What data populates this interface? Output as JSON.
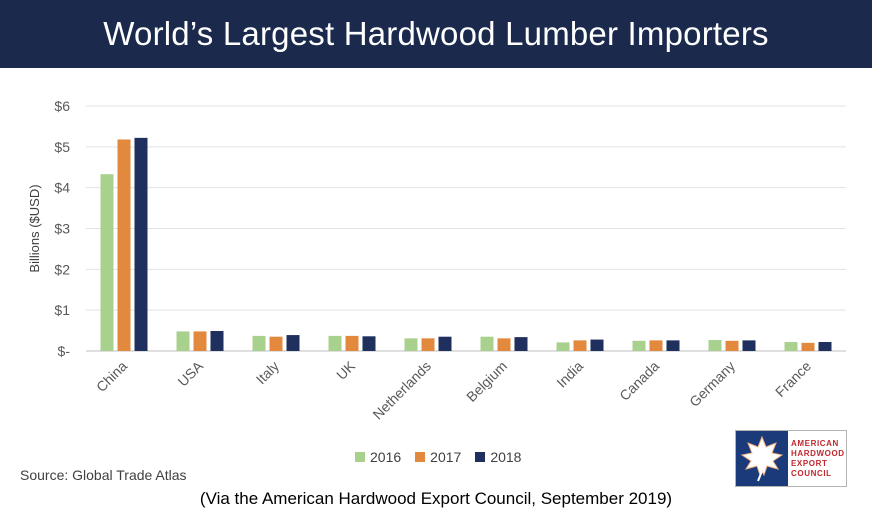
{
  "header": {
    "title": "World’s Largest Hardwood Lumber Importers"
  },
  "chart_data": {
    "type": "bar",
    "title": "World’s Largest Hardwood Lumber Importers",
    "ylabel": "Billions ($USD)",
    "xlabel": "",
    "ylim": [
      0,
      6
    ],
    "yticks": [
      "$-",
      "$1",
      "$2",
      "$3",
      "$4",
      "$5",
      "$6"
    ],
    "grid": true,
    "legend_position": "bottom",
    "categories": [
      "China",
      "USA",
      "Italy",
      "UK",
      "Netherlands",
      "Belgium",
      "India",
      "Canada",
      "Germany",
      "France"
    ],
    "series": [
      {
        "name": "2016",
        "color": "#a9d18e",
        "values": [
          4.33,
          0.48,
          0.37,
          0.37,
          0.31,
          0.35,
          0.21,
          0.25,
          0.27,
          0.22
        ]
      },
      {
        "name": "2017",
        "color": "#e2893d",
        "values": [
          5.18,
          0.48,
          0.35,
          0.37,
          0.31,
          0.31,
          0.26,
          0.26,
          0.25,
          0.2
        ]
      },
      {
        "name": "2018",
        "color": "#1f2f5e",
        "values": [
          5.22,
          0.49,
          0.39,
          0.36,
          0.35,
          0.34,
          0.28,
          0.26,
          0.26,
          0.22
        ]
      }
    ]
  },
  "footer": {
    "source": "Source: Global Trade Atlas",
    "caption": "(Via the American Hardwood Export Council, September 2019)"
  },
  "logo": {
    "lines": [
      "AMERICAN",
      "HARDWOOD",
      "EXPORT",
      "COUNCIL"
    ],
    "icon": "leaf-icon"
  }
}
